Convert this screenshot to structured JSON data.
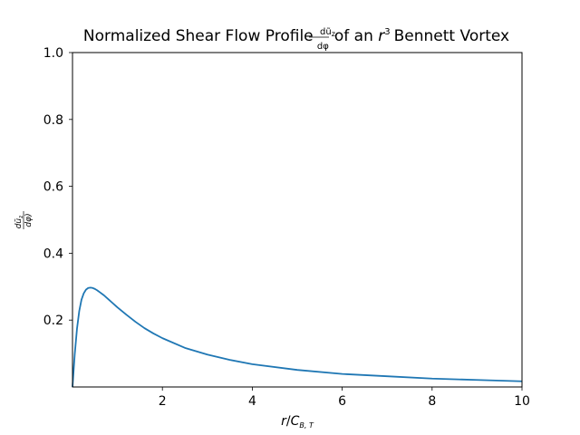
{
  "chart_data": {
    "type": "line",
    "title": {
      "prefix": "Normalized Shear Flow Profile",
      "frac_numerator": "dũ",
      "frac_numerator_sub": "z",
      "frac_denominator": "dφ",
      "middle": "of an",
      "var": "r",
      "var_superscript": "3",
      "suffix": "Bennett Vortex"
    },
    "xlabel": {
      "var": "r",
      "slash": "/",
      "sym": "C",
      "sub": "B, T"
    },
    "ylabel": {
      "frac_numerator": "dũ",
      "frac_numerator_sub": "z",
      "frac_denominator": "dφ)"
    },
    "xlim": [
      0,
      10
    ],
    "ylim": [
      0,
      1.0
    ],
    "xticks": [
      {
        "value": 2,
        "label": "2"
      },
      {
        "value": 4,
        "label": "4"
      },
      {
        "value": 6,
        "label": "6"
      },
      {
        "value": 8,
        "label": "8"
      },
      {
        "value": 10,
        "label": "10"
      }
    ],
    "yticks": [
      {
        "value": 0.2,
        "label": "0.2"
      },
      {
        "value": 0.4,
        "label": "0.4"
      },
      {
        "value": 0.6,
        "label": "0.6"
      },
      {
        "value": 0.8,
        "label": "0.8"
      },
      {
        "value": 1.0,
        "label": "1.0"
      }
    ],
    "grid": false,
    "series": [
      {
        "color": "#1f77b4",
        "x": [
          0,
          0.05,
          0.1,
          0.15,
          0.2,
          0.25,
          0.3,
          0.35,
          0.4,
          0.45,
          0.5,
          0.55,
          0.6,
          0.7,
          0.8,
          0.9,
          1.0,
          1.2,
          1.4,
          1.6,
          1.8,
          2.0,
          2.5,
          3.0,
          3.5,
          4.0,
          5.0,
          6.0,
          7.0,
          8.0,
          9.0,
          10.0
        ],
        "y": [
          0,
          0.098,
          0.174,
          0.227,
          0.261,
          0.28,
          0.291,
          0.296,
          0.297,
          0.296,
          0.293,
          0.289,
          0.284,
          0.274,
          0.262,
          0.25,
          0.238,
          0.216,
          0.195,
          0.176,
          0.16,
          0.146,
          0.117,
          0.097,
          0.081,
          0.068,
          0.051,
          0.039,
          0.032,
          0.025,
          0.021,
          0.017
        ]
      }
    ]
  }
}
